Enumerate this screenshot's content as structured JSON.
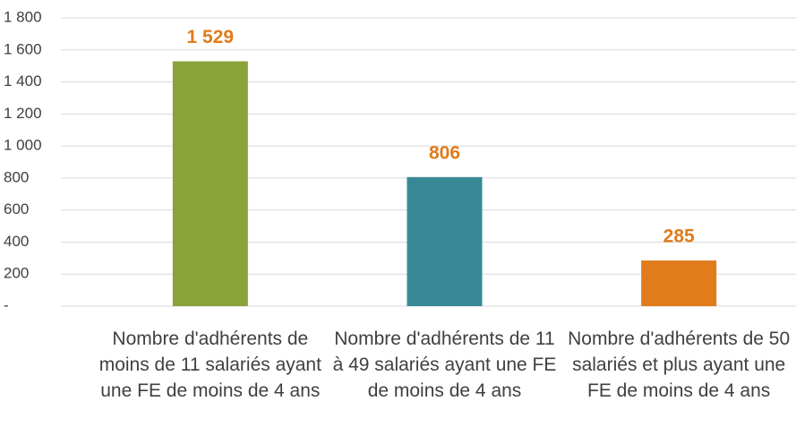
{
  "chart_data": {
    "type": "bar",
    "categories": [
      "Nombre d'adhérents de moins de 11 salariés ayant une FE de moins de 4 ans",
      "Nombre d'adhérents de 11 à 49 salariés ayant une FE de moins de 4 ans",
      "Nombre d'adhérents de 50 salariés et plus ayant une FE de moins de 4 ans"
    ],
    "values": [
      1529,
      806,
      285
    ],
    "value_labels": [
      "1 529",
      "806",
      "285"
    ],
    "colors": [
      "#8ba23b",
      "#388996",
      "#e07c1b"
    ],
    "value_label_color": "#e07c1b",
    "ylim": [
      0,
      1800
    ],
    "yticks": [
      {
        "value": 0,
        "label": "-"
      },
      200,
      400,
      600,
      800,
      {
        "value": 1000,
        "label": "1 000"
      },
      {
        "value": 1200,
        "label": "1 200"
      },
      {
        "value": 1400,
        "label": "1 400"
      },
      {
        "value": 1600,
        "label": "1 600"
      },
      {
        "value": 1800,
        "label": "1 800"
      }
    ],
    "grid": true
  }
}
